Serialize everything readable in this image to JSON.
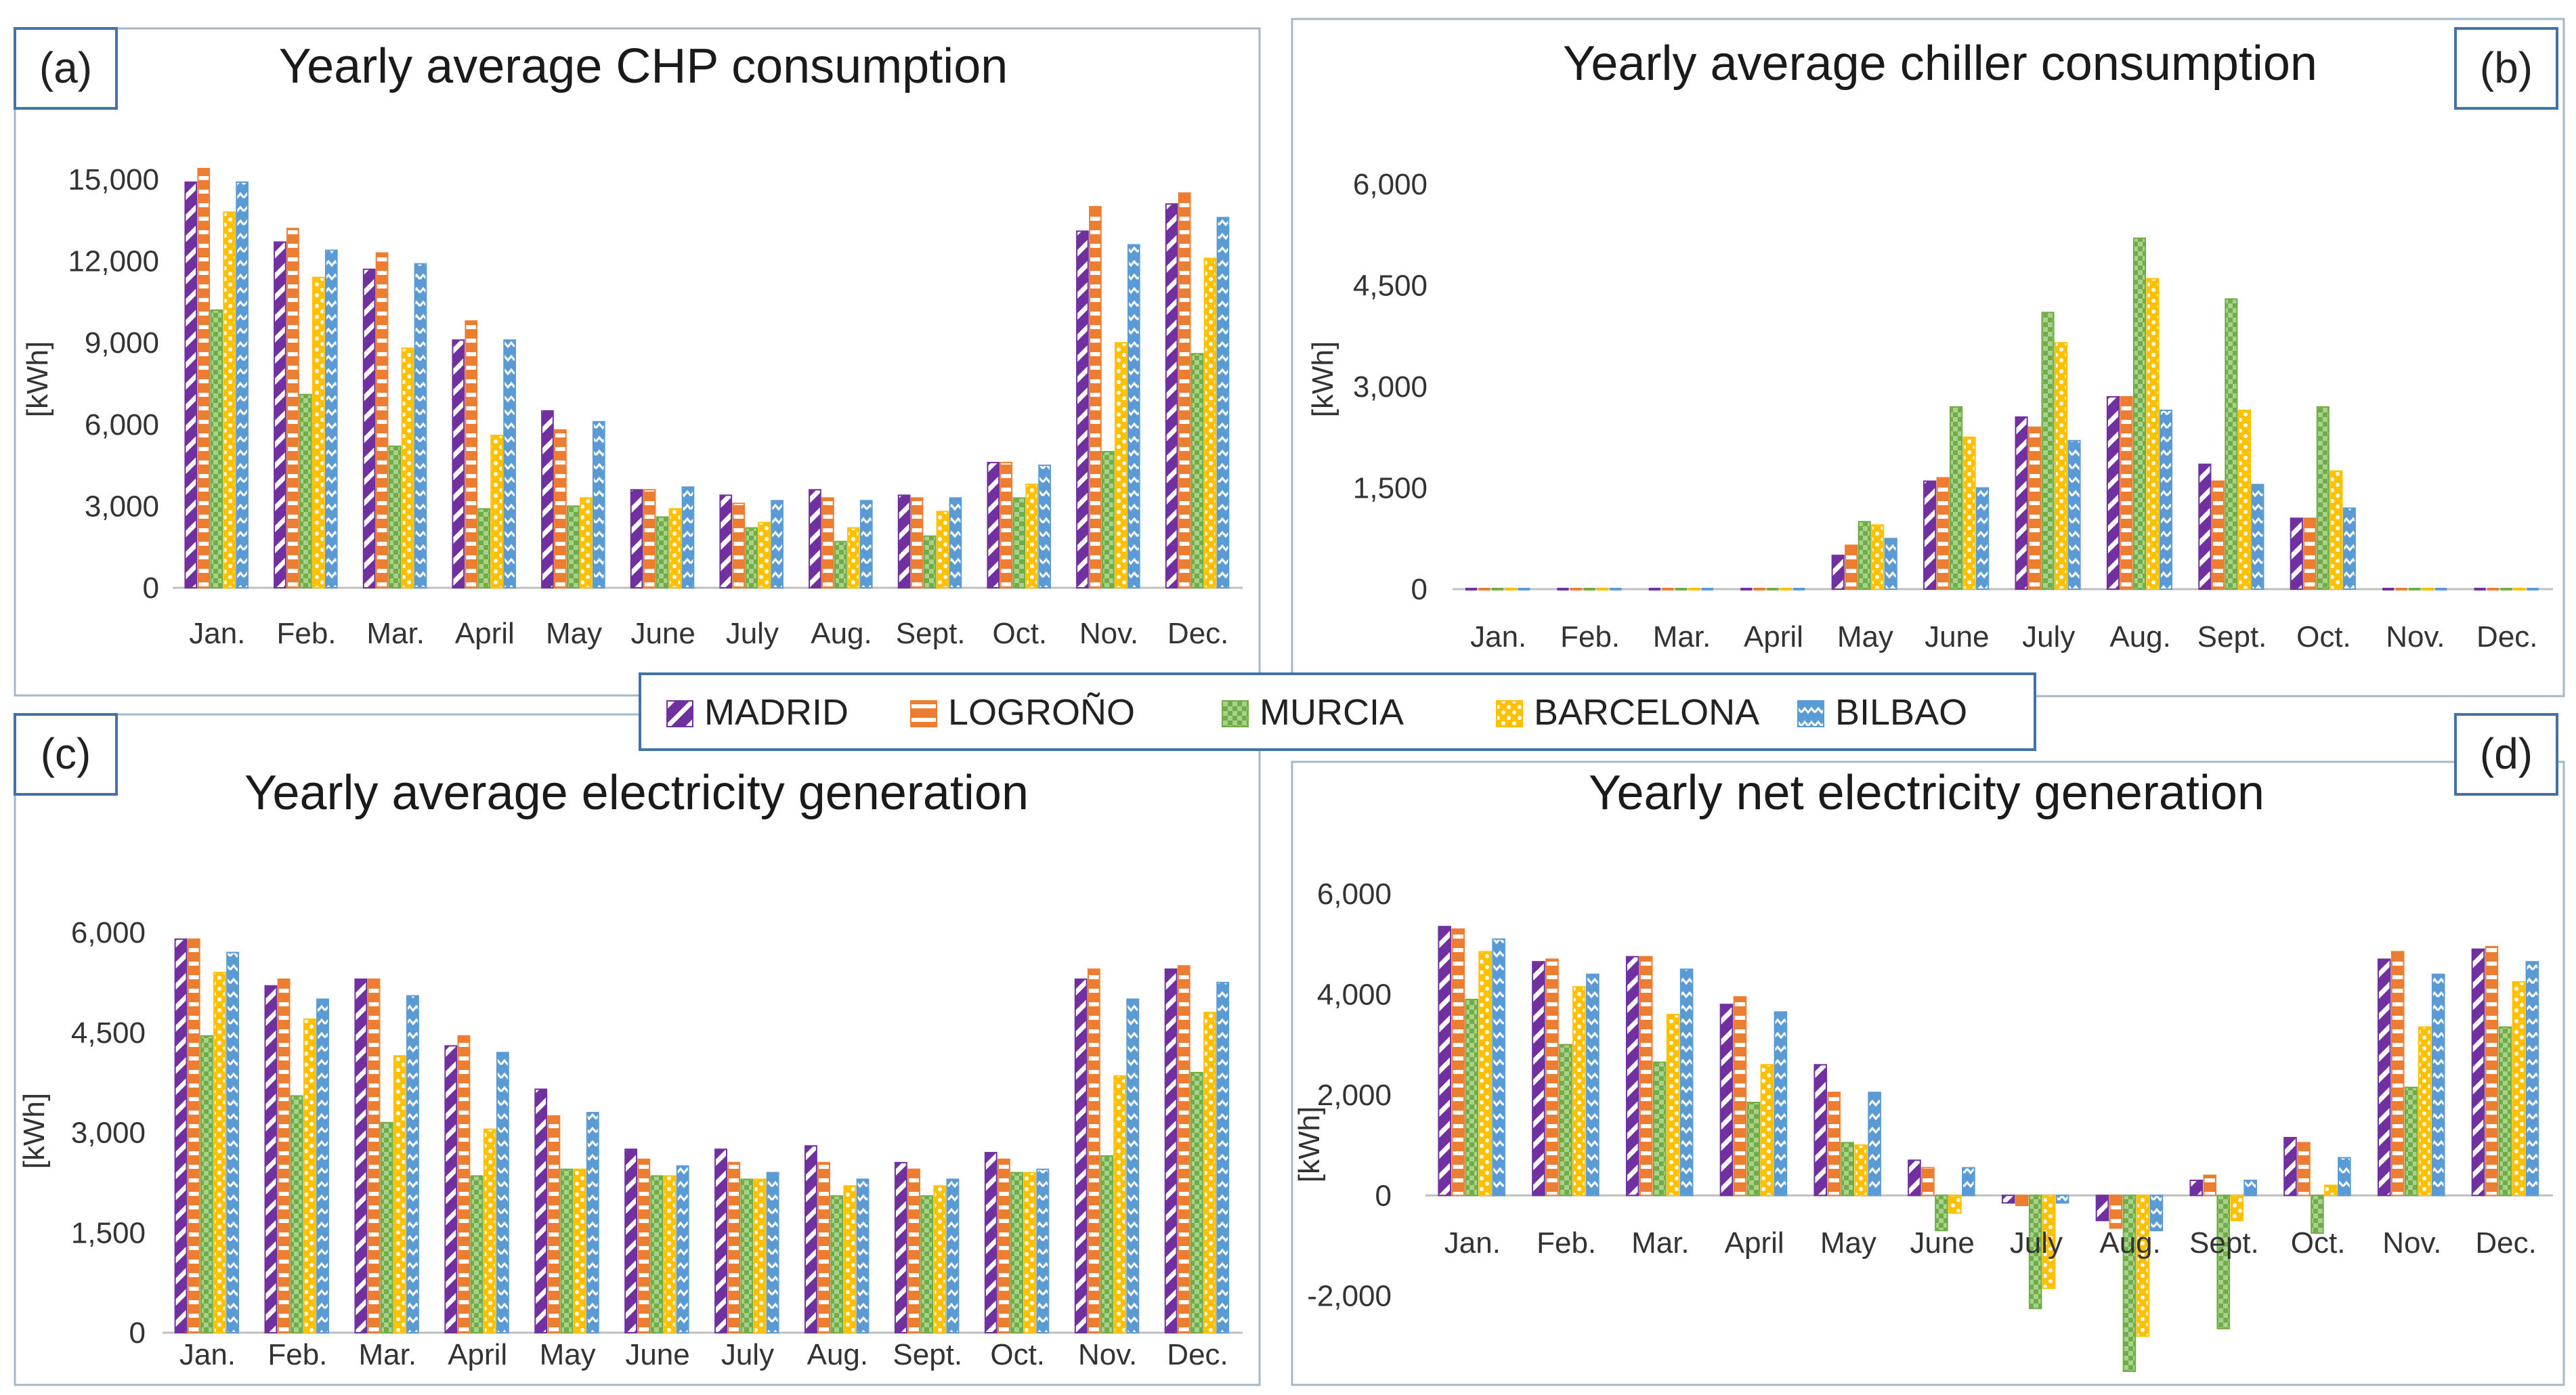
{
  "legend": {
    "entries": [
      {
        "name": "MADRID",
        "color": "#7030A0",
        "pattern": "diagonal-stripes"
      },
      {
        "name": "LOGROÑO",
        "color": "#ED7D31",
        "pattern": "horizontal-stripes"
      },
      {
        "name": "MURCIA",
        "color": "#70AD47",
        "pattern": "checker"
      },
      {
        "name": "BARCELONA",
        "color": "#FFC000",
        "pattern": "dots"
      },
      {
        "name": "BILBAO",
        "color": "#5B9BD5",
        "pattern": "zigzag"
      }
    ]
  },
  "chart_data": [
    {
      "panel": "(a)",
      "type": "bar",
      "title": "Yearly average CHP consumption",
      "ylabel": "[kWh]",
      "xlabel": "",
      "ylim": [
        0,
        15000
      ],
      "yticks": [
        "0",
        "3,000",
        "6,000",
        "9,000",
        "12,000",
        "15,000"
      ],
      "ytick_values": [
        0,
        3000,
        6000,
        9000,
        12000,
        15000
      ],
      "categories": [
        "Jan.",
        "Feb.",
        "Mar.",
        "April",
        "May",
        "June",
        "July",
        "Aug.",
        "Sept.",
        "Oct.",
        "Nov.",
        "Dec."
      ],
      "series": [
        {
          "name": "MADRID",
          "values": [
            14900,
            12700,
            11700,
            9100,
            6500,
            3600,
            3400,
            3600,
            3400,
            4600,
            13100,
            14100
          ]
        },
        {
          "name": "LOGROÑO",
          "values": [
            15400,
            13200,
            12300,
            9800,
            5800,
            3600,
            3100,
            3300,
            3300,
            4600,
            14000,
            14500
          ]
        },
        {
          "name": "MURCIA",
          "values": [
            10200,
            7100,
            5200,
            2900,
            3000,
            2600,
            2200,
            1700,
            1900,
            3300,
            5000,
            8600
          ]
        },
        {
          "name": "BARCELONA",
          "values": [
            13800,
            11400,
            8800,
            5600,
            3300,
            2900,
            2400,
            2200,
            2800,
            3800,
            9000,
            12100
          ]
        },
        {
          "name": "BILBAO",
          "values": [
            14900,
            12400,
            11900,
            9100,
            6100,
            3700,
            3200,
            3200,
            3300,
            4500,
            12600,
            13600
          ]
        }
      ]
    },
    {
      "panel": "(b)",
      "type": "bar",
      "title": "Yearly average chiller consumption",
      "ylabel": "[kWh]",
      "xlabel": "",
      "ylim": [
        0,
        6000
      ],
      "yticks": [
        "0",
        "1,500",
        "3,000",
        "4,500",
        "6,000"
      ],
      "ytick_values": [
        0,
        1500,
        3000,
        4500,
        6000
      ],
      "categories": [
        "Jan.",
        "Feb.",
        "Mar.",
        "April",
        "May",
        "June",
        "July",
        "Aug.",
        "Sept.",
        "Oct.",
        "Nov.",
        "Dec."
      ],
      "series": [
        {
          "name": "MADRID",
          "values": [
            0,
            0,
            0,
            0,
            500,
            1600,
            2550,
            2850,
            1850,
            1050,
            0,
            0
          ]
        },
        {
          "name": "LOGROÑO",
          "values": [
            0,
            0,
            0,
            0,
            650,
            1650,
            2400,
            2850,
            1600,
            1050,
            0,
            0
          ]
        },
        {
          "name": "MURCIA",
          "values": [
            0,
            0,
            0,
            0,
            1000,
            2700,
            4100,
            5200,
            4300,
            2700,
            0,
            0
          ]
        },
        {
          "name": "BARCELONA",
          "values": [
            0,
            0,
            0,
            0,
            950,
            2250,
            3650,
            4600,
            2650,
            1750,
            0,
            0
          ]
        },
        {
          "name": "BILBAO",
          "values": [
            0,
            0,
            0,
            0,
            750,
            1500,
            2200,
            2650,
            1550,
            1200,
            0,
            0
          ]
        }
      ]
    },
    {
      "panel": "(c)",
      "type": "bar",
      "title": "Yearly average electricity generation",
      "ylabel": "[kWh]",
      "xlabel": "",
      "ylim": [
        0,
        6000
      ],
      "yticks": [
        "0",
        "1,500",
        "3,000",
        "4,500",
        "6,000"
      ],
      "ytick_values": [
        0,
        1500,
        3000,
        4500,
        6000
      ],
      "categories": [
        "Jan.",
        "Feb.",
        "Mar.",
        "April",
        "May",
        "June",
        "July",
        "Aug.",
        "Sept.",
        "Oct.",
        "Nov.",
        "Dec."
      ],
      "series": [
        {
          "name": "MADRID",
          "values": [
            5900,
            5200,
            5300,
            4300,
            3650,
            2750,
            2750,
            2800,
            2550,
            2700,
            5300,
            5450
          ]
        },
        {
          "name": "LOGROÑO",
          "values": [
            5900,
            5300,
            5300,
            4450,
            3250,
            2600,
            2550,
            2550,
            2450,
            2600,
            5450,
            5500
          ]
        },
        {
          "name": "MURCIA",
          "values": [
            4450,
            3550,
            3150,
            2350,
            2450,
            2350,
            2300,
            2050,
            2050,
            2400,
            2650,
            3900
          ]
        },
        {
          "name": "BARCELONA",
          "values": [
            5400,
            4700,
            4150,
            3050,
            2450,
            2350,
            2300,
            2200,
            2200,
            2400,
            3850,
            4800
          ]
        },
        {
          "name": "BILBAO",
          "values": [
            5700,
            5000,
            5050,
            4200,
            3300,
            2500,
            2400,
            2300,
            2300,
            2450,
            5000,
            5250
          ]
        }
      ]
    },
    {
      "panel": "(d)",
      "type": "bar",
      "title": "Yearly net electricity generation",
      "ylabel": "[kWh]",
      "xlabel": "",
      "ylim": [
        -3500,
        6000
      ],
      "yticks": [
        "-2,000",
        "0",
        "2,000",
        "4,000",
        "6,000"
      ],
      "ytick_values": [
        -2000,
        0,
        2000,
        4000,
        6000
      ],
      "categories": [
        "Jan.",
        "Feb.",
        "Mar.",
        "April",
        "May",
        "June",
        "July",
        "Aug.",
        "Sept.",
        "Oct.",
        "Nov.",
        "Dec."
      ],
      "series": [
        {
          "name": "MADRID",
          "values": [
            5350,
            4650,
            4750,
            3800,
            2600,
            700,
            -150,
            -500,
            300,
            1150,
            4700,
            4900
          ]
        },
        {
          "name": "LOGROÑO",
          "values": [
            5300,
            4700,
            4750,
            3950,
            2050,
            550,
            -200,
            -650,
            400,
            1050,
            4850,
            4950
          ]
        },
        {
          "name": "MURCIA",
          "values": [
            3900,
            3000,
            2650,
            1850,
            1050,
            -700,
            -2250,
            -3500,
            -2650,
            -750,
            2150,
            3350
          ]
        },
        {
          "name": "BARCELONA",
          "values": [
            4850,
            4150,
            3600,
            2600,
            1000,
            -350,
            -1850,
            -2800,
            -500,
            200,
            3350,
            4250
          ]
        },
        {
          "name": "BILBAO",
          "values": [
            5100,
            4400,
            4500,
            3650,
            2050,
            550,
            -150,
            -700,
            300,
            750,
            4400,
            4650
          ]
        }
      ]
    }
  ]
}
